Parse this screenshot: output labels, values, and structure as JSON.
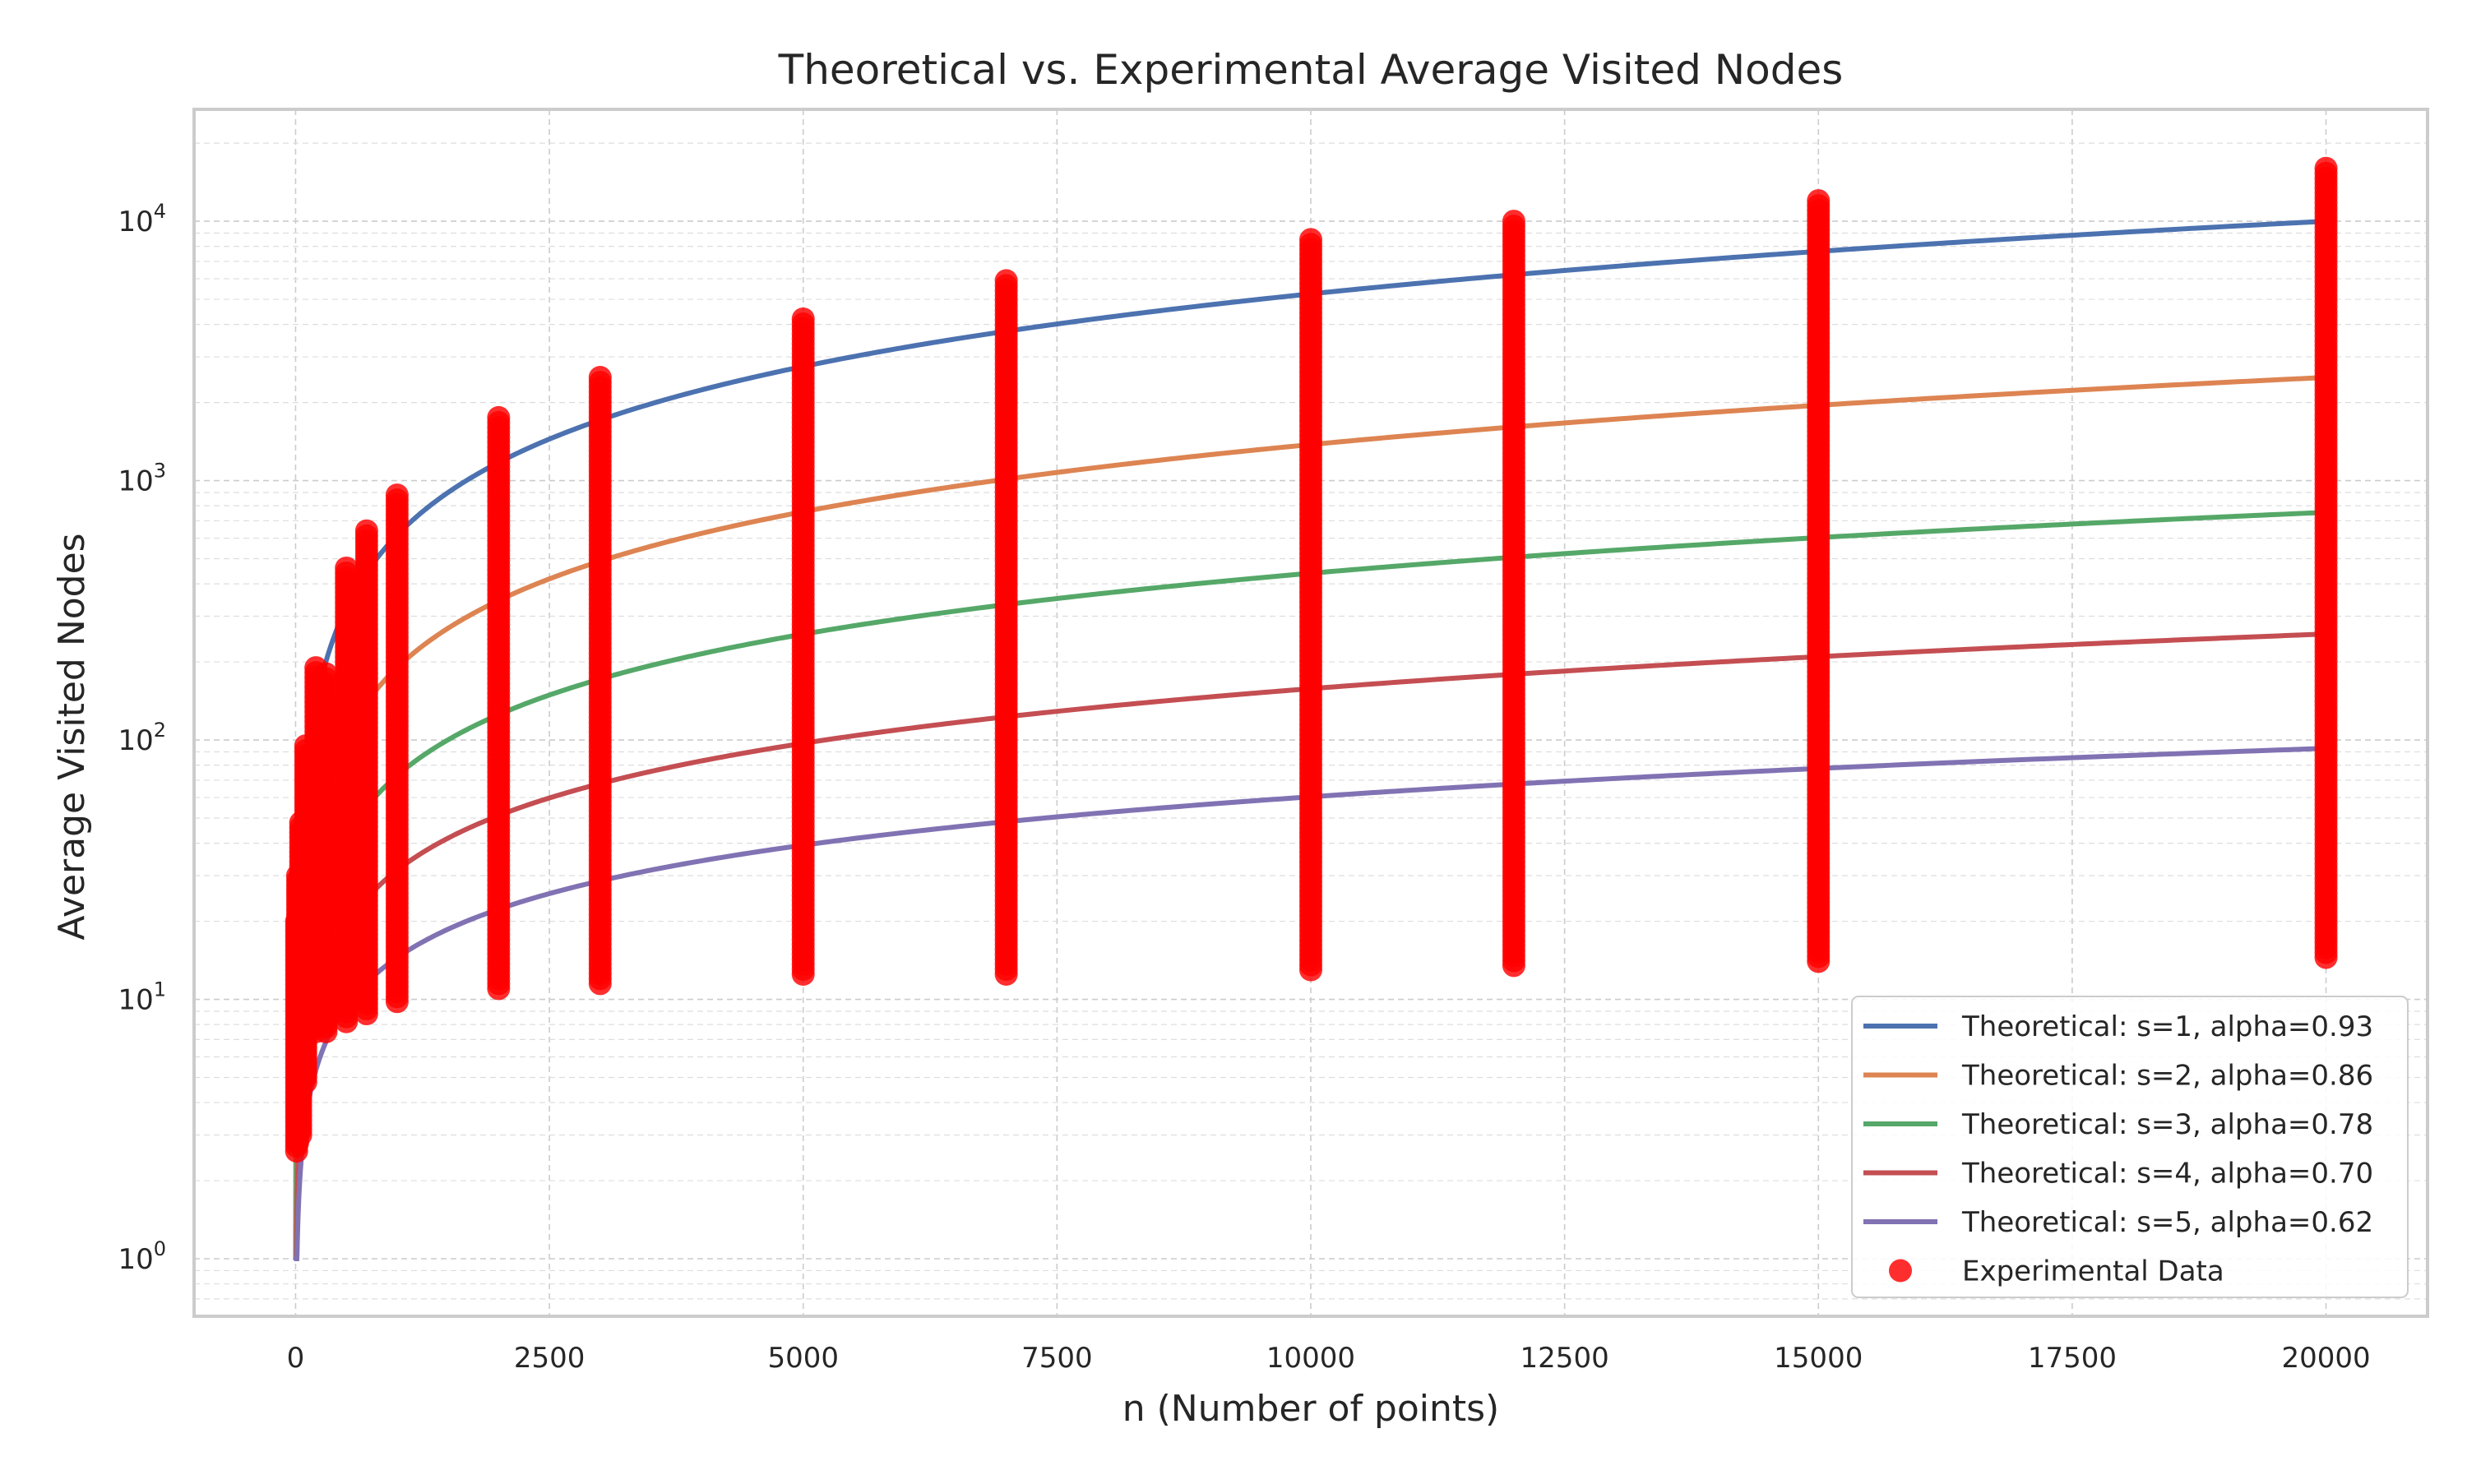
{
  "chart_data": {
    "type": "scatter",
    "title": "Theoretical vs. Experimental Average Visited Nodes",
    "xlabel": "n (Number of points)",
    "ylabel": "Average Visited Nodes",
    "xlim": [
      -1000,
      21000
    ],
    "ylim": [
      0.6,
      27000
    ],
    "yscale": "log",
    "grid": true,
    "legend_position": "bottom-right",
    "x_ticks": [
      {
        "value": 0,
        "label": "0"
      },
      {
        "value": 2500,
        "label": "2500"
      },
      {
        "value": 5000,
        "label": "5000"
      },
      {
        "value": 7500,
        "label": "7500"
      },
      {
        "value": 10000,
        "label": "10000"
      },
      {
        "value": 12500,
        "label": "12500"
      },
      {
        "value": 15000,
        "label": "15000"
      },
      {
        "value": 17500,
        "label": "17500"
      },
      {
        "value": 20000,
        "label": "20000"
      }
    ],
    "y_ticks": [
      {
        "value": 1,
        "base": "10",
        "exp": "0"
      },
      {
        "value": 10,
        "base": "10",
        "exp": "1"
      },
      {
        "value": 100,
        "base": "10",
        "exp": "2"
      },
      {
        "value": 1000,
        "base": "10",
        "exp": "3"
      },
      {
        "value": 10000,
        "base": "10",
        "exp": "4"
      }
    ],
    "series": [
      {
        "name": "Theoretical: s=1, alpha=0.93",
        "kind": "line",
        "color": "#4c72b0",
        "s": 1,
        "alpha": 0.93
      },
      {
        "name": "Theoretical: s=2, alpha=0.86",
        "kind": "line",
        "color": "#dd8452",
        "s": 2,
        "alpha": 0.86
      },
      {
        "name": "Theoretical: s=3, alpha=0.78",
        "kind": "line",
        "color": "#55a868",
        "s": 3,
        "alpha": 0.78
      },
      {
        "name": "Theoretical: s=4, alpha=0.70",
        "kind": "line",
        "color": "#c44e52",
        "s": 4,
        "alpha": 0.7
      },
      {
        "name": "Theoretical: s=5, alpha=0.62",
        "kind": "line",
        "color": "#8172b3",
        "s": 5,
        "alpha": 0.62
      }
    ],
    "experimental": {
      "name": "Experimental Data",
      "color": "#ff0000",
      "groups": [
        {
          "n": 10,
          "min": 2.6,
          "max": 20
        },
        {
          "n": 20,
          "min": 2.8,
          "max": 30
        },
        {
          "n": 50,
          "min": 3.0,
          "max": 48
        },
        {
          "n": 100,
          "min": 4.8,
          "max": 95
        },
        {
          "n": 200,
          "min": 7.5,
          "max": 190
        },
        {
          "n": 300,
          "min": 7.5,
          "max": 180
        },
        {
          "n": 500,
          "min": 8.2,
          "max": 460
        },
        {
          "n": 700,
          "min": 8.8,
          "max": 640
        },
        {
          "n": 1000,
          "min": 9.8,
          "max": 880
        },
        {
          "n": 2000,
          "min": 11,
          "max": 1750
        },
        {
          "n": 3000,
          "min": 11.5,
          "max": 2500
        },
        {
          "n": 5000,
          "min": 12.5,
          "max": 4200
        },
        {
          "n": 7000,
          "min": 12.5,
          "max": 5900
        },
        {
          "n": 10000,
          "min": 13,
          "max": 8500
        },
        {
          "n": 12000,
          "min": 13.5,
          "max": 10000
        },
        {
          "n": 15000,
          "min": 14,
          "max": 12000
        },
        {
          "n": 20000,
          "min": 14.5,
          "max": 16000
        }
      ]
    }
  }
}
